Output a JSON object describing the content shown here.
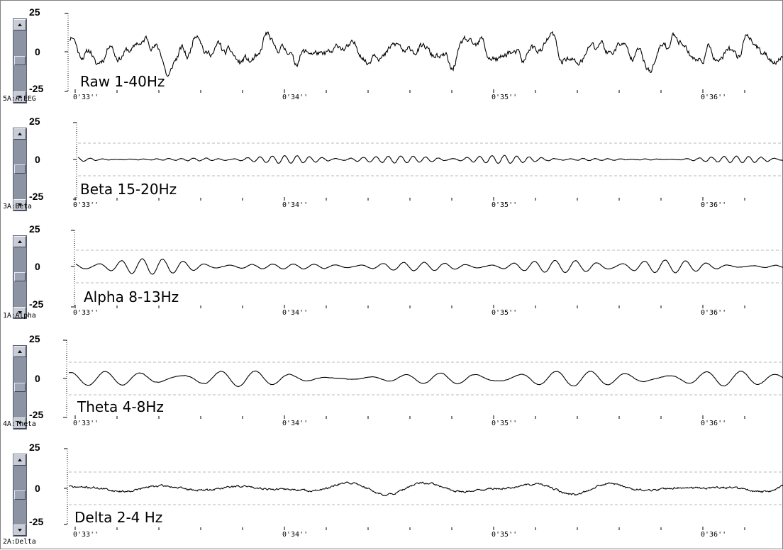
{
  "time_axis": {
    "labels": [
      "0'33''",
      "0'34''",
      "0'35''",
      "0'36''"
    ],
    "minor_ticks_per_second": 5
  },
  "colors": {
    "trace": "#000000",
    "guide_dashed": "#b8b8b8",
    "scrollbar": "#8c94a4"
  },
  "panels": [
    {
      "id": "raw",
      "channel": "5A:A:EEG",
      "band_label": "Raw 1-40Hz",
      "y_max": "25",
      "y_zero": "0",
      "y_min": "-25",
      "scale": {
        "min": -25,
        "max": 25
      },
      "dashed_guides": false,
      "signal": {
        "seed": 11,
        "components": [
          [
            3.1,
            6.5
          ],
          [
            5.2,
            4.8
          ],
          [
            9.5,
            3.2
          ],
          [
            11.8,
            3.0
          ],
          [
            17.5,
            1.6
          ],
          [
            23.0,
            1.0
          ]
        ],
        "envelope": 0.55,
        "noise": 1.6
      }
    },
    {
      "id": "beta",
      "channel": "3A:Beta",
      "band_label": "Beta 15-20Hz",
      "y_max": "25",
      "y_zero": "0",
      "y_min": "-25",
      "scale": {
        "min": -25,
        "max": 25
      },
      "dashed_guides": true,
      "signal": {
        "seed": 23,
        "components": [
          [
            16.2,
            2.2
          ],
          [
            18.1,
            1.4
          ]
        ],
        "envelope": 0.9,
        "noise": 0.15
      }
    },
    {
      "id": "alpha",
      "channel": "1A:Alpha",
      "band_label": "Alpha 8-13Hz",
      "y_max": "25",
      "y_zero": "0",
      "y_min": "-25",
      "scale": {
        "min": -25,
        "max": 25
      },
      "dashed_guides": true,
      "signal": {
        "seed": 37,
        "components": [
          [
            9.6,
            3.6
          ],
          [
            11.2,
            2.0
          ]
        ],
        "envelope": 0.85,
        "noise": 0.1
      }
    },
    {
      "id": "theta",
      "channel": "4A:Theta",
      "band_label": "Theta 4-8Hz",
      "y_max": "25",
      "y_zero": "0",
      "y_min": "-25",
      "scale": {
        "min": -25,
        "max": 25
      },
      "dashed_guides": true,
      "signal": {
        "seed": 53,
        "components": [
          [
            5.6,
            4.6
          ],
          [
            6.9,
            2.6
          ]
        ],
        "envelope": 0.8,
        "noise": 0.12
      }
    },
    {
      "id": "delta",
      "channel": "2A:Delta",
      "band_label": "Delta 2-4 Hz",
      "y_max": "25",
      "y_zero": "0",
      "y_min": "-25",
      "scale": {
        "min": -25,
        "max": 25
      },
      "dashed_guides": true,
      "signal": {
        "seed": 71,
        "components": [
          [
            2.3,
            3.8
          ],
          [
            3.3,
            2.4
          ]
        ],
        "envelope": 0.8,
        "noise": 0.55
      }
    }
  ]
}
